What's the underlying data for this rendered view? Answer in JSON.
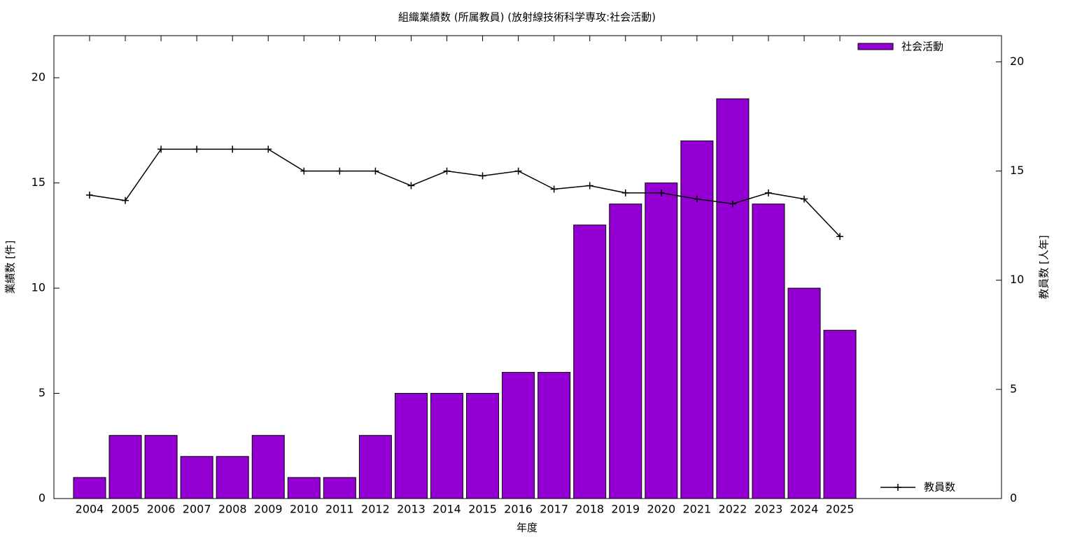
{
  "chart_data": {
    "type": "bar",
    "title": "組織業績数 (所属教員) (放射線技術科学専攻:社会活動)",
    "x_label": "年度",
    "y_label": "業績数 [件]",
    "y2_label": "教員数 [人年]",
    "categories": [
      "2004",
      "2005",
      "2006",
      "2007",
      "2008",
      "2009",
      "2010",
      "2011",
      "2012",
      "2013",
      "2014",
      "2015",
      "2016",
      "2017",
      "2018",
      "2019",
      "2020",
      "2021",
      "2022",
      "2023",
      "2024",
      "2025"
    ],
    "series": [
      {
        "name": "社会活動",
        "color": "#9400d3",
        "values": [
          1,
          3,
          3,
          2,
          2,
          3,
          1,
          1,
          3,
          5,
          5,
          5,
          6,
          6,
          13,
          14,
          15,
          17,
          19,
          14,
          10,
          8
        ]
      },
      {
        "name": "教員数",
        "color": "#000000",
        "axis": "y2",
        "type": "line",
        "values": [
          13.9,
          13.65,
          16,
          16,
          16,
          16,
          15,
          15,
          15,
          14.33,
          15,
          14.78,
          15,
          14.17,
          14.33,
          14,
          14,
          13.72,
          13.5,
          14,
          13.72,
          12
        ]
      }
    ],
    "ylim": [
      0,
      22
    ],
    "yticks": [
      0,
      5,
      10,
      15,
      20
    ],
    "y2lim": [
      0,
      21.2
    ],
    "y2ticks": [
      0,
      5,
      10,
      15,
      20
    ]
  }
}
